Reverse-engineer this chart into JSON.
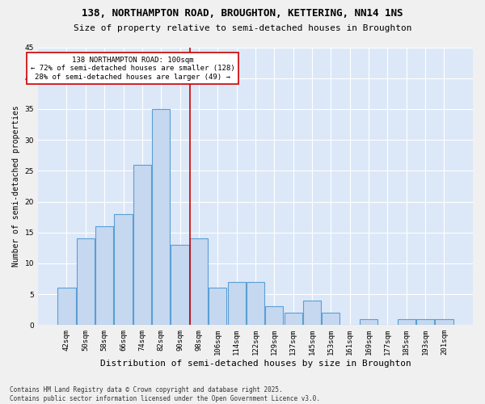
{
  "title": "138, NORTHAMPTON ROAD, BROUGHTON, KETTERING, NN14 1NS",
  "subtitle": "Size of property relative to semi-detached houses in Broughton",
  "xlabel": "Distribution of semi-detached houses by size in Broughton",
  "ylabel": "Number of semi-detached properties",
  "categories": [
    "42sqm",
    "50sqm",
    "58sqm",
    "66sqm",
    "74sqm",
    "82sqm",
    "90sqm",
    "98sqm",
    "106sqm",
    "114sqm",
    "122sqm",
    "129sqm",
    "137sqm",
    "145sqm",
    "153sqm",
    "161sqm",
    "169sqm",
    "177sqm",
    "185sqm",
    "193sqm",
    "201sqm"
  ],
  "values": [
    6,
    14,
    16,
    18,
    26,
    35,
    13,
    14,
    6,
    7,
    7,
    3,
    2,
    4,
    2,
    0,
    1,
    0,
    1,
    1,
    1
  ],
  "bar_color": "#c5d8f0",
  "bar_edge_color": "#5a9fd4",
  "highlight_line_bin": 7,
  "highlight_line_color": "#cc0000",
  "annotation_text": "138 NORTHAMPTON ROAD: 100sqm\n← 72% of semi-detached houses are smaller (128)\n28% of semi-detached houses are larger (49) →",
  "annotation_box_color": "#cc0000",
  "ylim": [
    0,
    45
  ],
  "yticks": [
    0,
    5,
    10,
    15,
    20,
    25,
    30,
    35,
    40,
    45
  ],
  "background_color": "#dce8f8",
  "grid_color": "#ffffff",
  "footer_text": "Contains HM Land Registry data © Crown copyright and database right 2025.\nContains public sector information licensed under the Open Government Licence v3.0.",
  "title_fontsize": 9,
  "subtitle_fontsize": 8,
  "xlabel_fontsize": 8,
  "ylabel_fontsize": 7,
  "tick_fontsize": 6.5,
  "annotation_fontsize": 6.5,
  "footer_fontsize": 5.5
}
